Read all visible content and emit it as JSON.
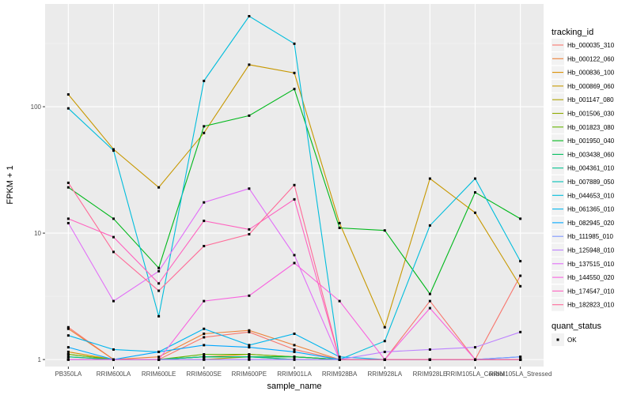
{
  "chart_data": {
    "type": "line",
    "xlabel": "sample_name",
    "ylabel": "FPKM + 1",
    "y_scale": "log10",
    "ylim": [
      0.88,
      650
    ],
    "y_ticks": [
      {
        "value": 1,
        "label": "1"
      },
      {
        "value": 10,
        "label": "10"
      },
      {
        "value": 100,
        "label": "100"
      }
    ],
    "categories": [
      "PB350LA",
      "RRIM600LA",
      "RRIM600LE",
      "RRIM600SE",
      "RRIM600PE",
      "RRIM901LA",
      "RRIM928BA",
      "RRIM928LA",
      "RRIM928LE",
      "RRIM105LA_Control",
      "RRIM105LA_Stressed"
    ],
    "legend": {
      "title": "tracking_id",
      "position": "right"
    },
    "shape_legend": {
      "title": "quant_status",
      "entries": [
        "OK"
      ]
    },
    "series": [
      {
        "name": "Hb_000035_310",
        "color": "#F8766D",
        "values": [
          1.8,
          1.0,
          1.0,
          1.5,
          1.65,
          1.2,
          1.0,
          1.0,
          2.9,
          1.0,
          4.6
        ]
      },
      {
        "name": "Hb_000122_060",
        "color": "#EC8239",
        "values": [
          1.75,
          1.0,
          1.05,
          1.6,
          1.7,
          1.3,
          1.0,
          1.0,
          1.0,
          1.0,
          1.0
        ]
      },
      {
        "name": "Hb_000836_100",
        "color": "#DB8E00",
        "values": [
          1.15,
          1.0,
          1.0,
          1.05,
          1.1,
          1.05,
          1.0,
          1.0,
          1.0,
          1.0,
          1.0
        ]
      },
      {
        "name": "Hb_000869_060",
        "color": "#C79800",
        "values": [
          125,
          46,
          23,
          62,
          215,
          185,
          12,
          1.8,
          27,
          14.5,
          3.8
        ]
      },
      {
        "name": "Hb_001147_080",
        "color": "#AEA200",
        "values": [
          1.1,
          1.0,
          1.0,
          1.0,
          1.05,
          1.0,
          1.0,
          1.0,
          1.0,
          1.0,
          1.0
        ]
      },
      {
        "name": "Hb_001506_030",
        "color": "#8FAA00",
        "values": [
          1.05,
          1.0,
          1.0,
          1.05,
          1.05,
          1.05,
          1.0,
          1.0,
          1.0,
          1.0,
          1.0
        ]
      },
      {
        "name": "Hb_001823_080",
        "color": "#64B200",
        "values": [
          1.1,
          1.0,
          1.0,
          1.1,
          1.1,
          1.05,
          1.0,
          1.0,
          1.0,
          1.0,
          1.0
        ]
      },
      {
        "name": "Hb_001950_040",
        "color": "#00B81B",
        "values": [
          23,
          13,
          5.3,
          70,
          85,
          138,
          11,
          10.5,
          3.3,
          21,
          13
        ]
      },
      {
        "name": "Hb_003438_060",
        "color": "#00BD5C",
        "values": [
          1.0,
          1.0,
          1.0,
          1.05,
          1.05,
          1.05,
          1.0,
          1.0,
          1.0,
          1.0,
          1.0
        ]
      },
      {
        "name": "Hb_004361_010",
        "color": "#00C08E",
        "values": [
          1.05,
          1.0,
          1.0,
          1.05,
          1.05,
          1.0,
          1.0,
          1.0,
          1.0,
          1.0,
          1.0
        ]
      },
      {
        "name": "Hb_007889_050",
        "color": "#00C1B7",
        "values": [
          1.0,
          1.0,
          1.0,
          1.0,
          1.0,
          1.0,
          1.0,
          1.0,
          1.0,
          1.0,
          1.0
        ]
      },
      {
        "name": "Hb_044653_010",
        "color": "#00BDDC",
        "values": [
          97,
          45,
          2.2,
          160,
          520,
          315,
          1.0,
          1.4,
          11.5,
          27,
          6.0
        ]
      },
      {
        "name": "Hb_061365_010",
        "color": "#00B5EE",
        "values": [
          1.55,
          1.2,
          1.15,
          1.75,
          1.3,
          1.6,
          1.05,
          1.0,
          1.0,
          1.0,
          1.0
        ]
      },
      {
        "name": "Hb_082945_020",
        "color": "#00A7FF",
        "values": [
          1.25,
          1.0,
          1.15,
          1.3,
          1.25,
          1.15,
          1.0,
          1.0,
          1.0,
          1.0,
          1.05
        ]
      },
      {
        "name": "Hb_111985_010",
        "color": "#7F96FF",
        "values": [
          1.0,
          1.0,
          1.0,
          1.0,
          1.0,
          1.0,
          1.0,
          1.0,
          1.0,
          1.0,
          1.05
        ]
      },
      {
        "name": "Hb_125948_010",
        "color": "#BC81FF",
        "values": [
          1.0,
          1.0,
          1.0,
          1.0,
          1.0,
          1.0,
          1.0,
          1.15,
          1.2,
          1.25,
          1.65
        ]
      },
      {
        "name": "Hb_137515_010",
        "color": "#E26EF7",
        "values": [
          12,
          2.9,
          5.0,
          17.5,
          22.5,
          6.7,
          1.0,
          1.0,
          1.0,
          1.0,
          1.0
        ]
      },
      {
        "name": "Hb_144550_020",
        "color": "#F863DF",
        "values": [
          1.0,
          1.0,
          1.0,
          2.9,
          3.2,
          5.8,
          2.9,
          1.0,
          2.55,
          1.0,
          1.0
        ]
      },
      {
        "name": "Hb_174547_010",
        "color": "#FF62BF",
        "values": [
          13,
          9.3,
          4.0,
          12.5,
          10.7,
          18.5,
          1.0,
          1.0,
          1.0,
          1.0,
          1.0
        ]
      },
      {
        "name": "Hb_182823_010",
        "color": "#FF6A98",
        "values": [
          25,
          7.1,
          3.5,
          7.9,
          9.8,
          24,
          1.0,
          1.0,
          1.0,
          1.0,
          1.0
        ]
      }
    ]
  }
}
